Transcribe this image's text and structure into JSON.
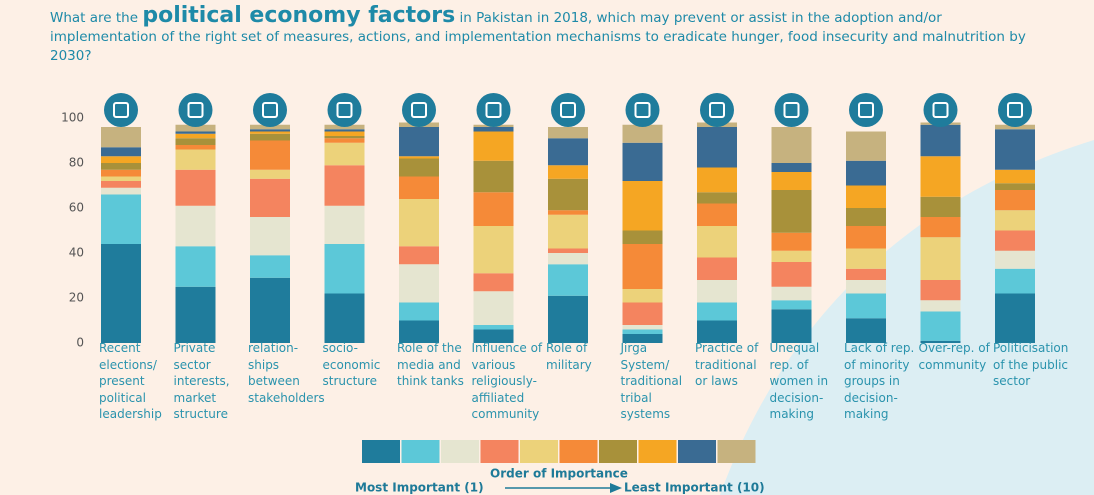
{
  "chart_data": {
    "type": "stacked_bar",
    "title": [
      "What are the",
      "political economy factors",
      "in Pakistan in 2018, which may prevent or assist in the adoption and/or implementation of the right set of measures, actions, and implementation mechanisms to eradicate hunger, food insecurity and malnutrition by 2030?"
    ],
    "categories": [
      "Recent elections/ present political leadership",
      "Private sector interests, market structure",
      "relation-ships between stakeholders",
      "socio-economic structure",
      "Role of the media and think tanks",
      "Influence of various religiously-affiliated community",
      "Role of military",
      "Jirga System/ traditional tribal systems",
      "Practice of traditional or laws",
      "Unequal rep. of women in decision-making",
      "Lack of rep. of minority groups in decision-making",
      "Over-rep. of community",
      "Politicisation of the public sector"
    ],
    "series": [
      {
        "color": "#1f7c9c",
        "values": [
          44,
          25,
          29,
          22,
          10,
          6,
          21,
          4,
          10,
          15,
          11,
          1,
          22
        ]
      },
      {
        "color": "#5cc8d8",
        "values": [
          22,
          18,
          10,
          22,
          8,
          2,
          14,
          2,
          8,
          4,
          11,
          13,
          11
        ]
      },
      {
        "color": "#e5e5d0",
        "values": [
          3,
          18,
          17,
          17,
          17,
          15,
          5,
          2,
          10,
          6,
          6,
          5,
          8
        ]
      },
      {
        "color": "#f4845f",
        "values": [
          3,
          16,
          17,
          18,
          8,
          8,
          2,
          10,
          10,
          11,
          5,
          9,
          9
        ]
      },
      {
        "color": "#ecd27a",
        "values": [
          2,
          9,
          4,
          10,
          21,
          21,
          15,
          6,
          14,
          5,
          9,
          19,
          9
        ]
      },
      {
        "color": "#f58a38",
        "values": [
          3,
          2,
          13,
          2,
          10,
          15,
          2,
          20,
          10,
          8,
          10,
          9,
          9
        ]
      },
      {
        "color": "#a8913a",
        "values": [
          3,
          3,
          3,
          1,
          8,
          14,
          14,
          6,
          5,
          19,
          8,
          9,
          3
        ]
      },
      {
        "color": "#f5a623",
        "values": [
          3,
          2,
          1,
          2,
          1,
          13,
          6,
          22,
          11,
          8,
          10,
          18,
          6
        ]
      },
      {
        "color": "#3a6b93",
        "values": [
          4,
          1,
          1,
          1,
          13,
          2,
          12,
          17,
          18,
          4,
          11,
          14,
          18
        ]
      },
      {
        "color": "#c6b27f",
        "values": [
          9,
          3,
          2,
          2,
          2,
          1,
          5,
          8,
          2,
          16,
          13,
          1,
          2
        ]
      }
    ],
    "ylim": [
      0,
      100
    ],
    "yticks": [
      0,
      20,
      40,
      60,
      80,
      100
    ],
    "legend_title": "Order of Importance",
    "legend_low": "Most Important (1)",
    "legend_high": "Least Important (10)"
  }
}
